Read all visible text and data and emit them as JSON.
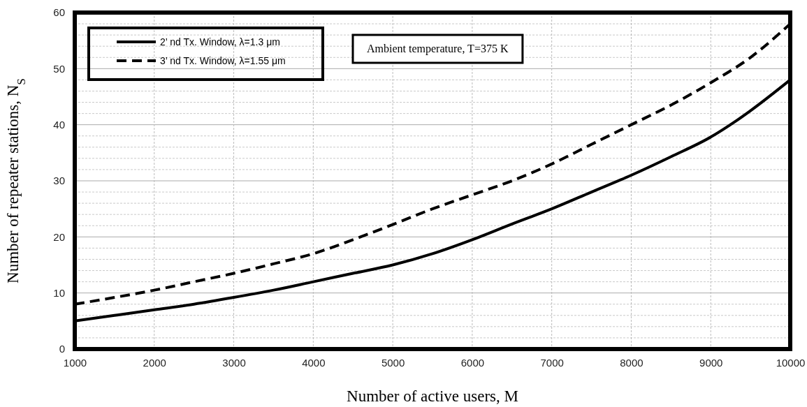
{
  "chart_data": {
    "type": "line",
    "xlabel": "Number of active users, M",
    "ylabel": "Number of repeater stations, N$_{S}$",
    "x": [
      1000,
      1500,
      2000,
      2500,
      3000,
      3500,
      4000,
      4500,
      5000,
      5500,
      6000,
      6500,
      7000,
      7500,
      8000,
      8500,
      9000,
      9300,
      9500,
      10000
    ],
    "series": [
      {
        "name": "2’ nd Tx. Window, λ=1.3 μm",
        "color": "#000000",
        "line_style": "solid",
        "values": [
          5,
          6,
          7,
          8,
          9.2,
          10.5,
          12,
          13.5,
          15,
          17,
          19.5,
          22.3,
          25,
          28,
          31,
          34.3,
          37.8,
          40.5,
          42.5,
          48
        ]
      },
      {
        "name": "3’ nd Tx. Window, λ=1.55 μm",
        "color": "#000000",
        "line_style": "dashed",
        "x": [
          1000,
          1500,
          2000,
          2500,
          3000,
          3500,
          4000,
          4500,
          5000,
          5500,
          6000,
          6500,
          7000,
          7500,
          8000,
          8500,
          9000,
          9500,
          10000
        ],
        "values": [
          8,
          9.2,
          10.5,
          12,
          13.5,
          15.2,
          17,
          19.5,
          22.2,
          25,
          27.5,
          30,
          33,
          36.5,
          40,
          43.5,
          47.5,
          52,
          58
        ]
      }
    ],
    "xlim": [
      1000,
      10000
    ],
    "xticks": [
      1000,
      2000,
      3000,
      4000,
      5000,
      6000,
      7000,
      8000,
      9000,
      10000
    ],
    "ylim": [
      0,
      60
    ],
    "yticks": [
      0,
      10,
      20,
      30,
      40,
      50,
      60
    ],
    "grid": true,
    "legend": "top left",
    "marker": "none",
    "annotations": [
      "Ambient temperature, T=375 K"
    ]
  }
}
